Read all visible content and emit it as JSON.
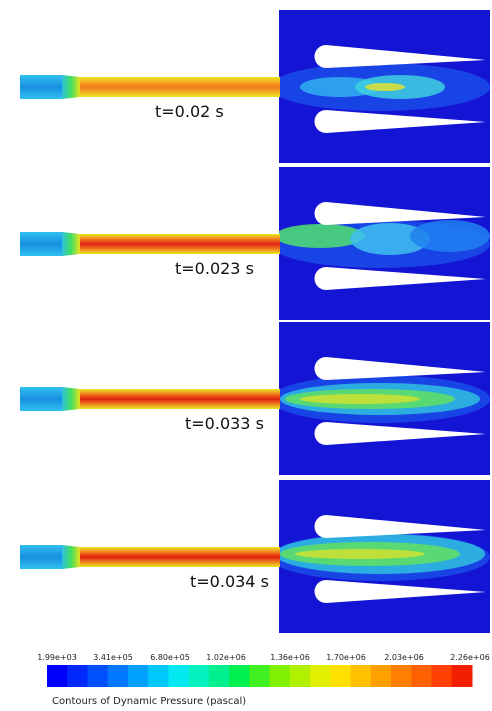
{
  "panels": [
    {
      "label": "t=0.02 s"
    },
    {
      "label": "t=0.023 s"
    },
    {
      "label": "t=0.033 s"
    },
    {
      "label": "t=0.034 s"
    }
  ],
  "colorbar": {
    "ticks": [
      "1.99e+03",
      "3.41e+05",
      "6.80e+05",
      "1.02e+06",
      "1.36e+06",
      "1.70e+06",
      "2.03e+06",
      "2.26e+06"
    ],
    "caption": "Contours of Dynamic Pressure (pascal)"
  }
}
